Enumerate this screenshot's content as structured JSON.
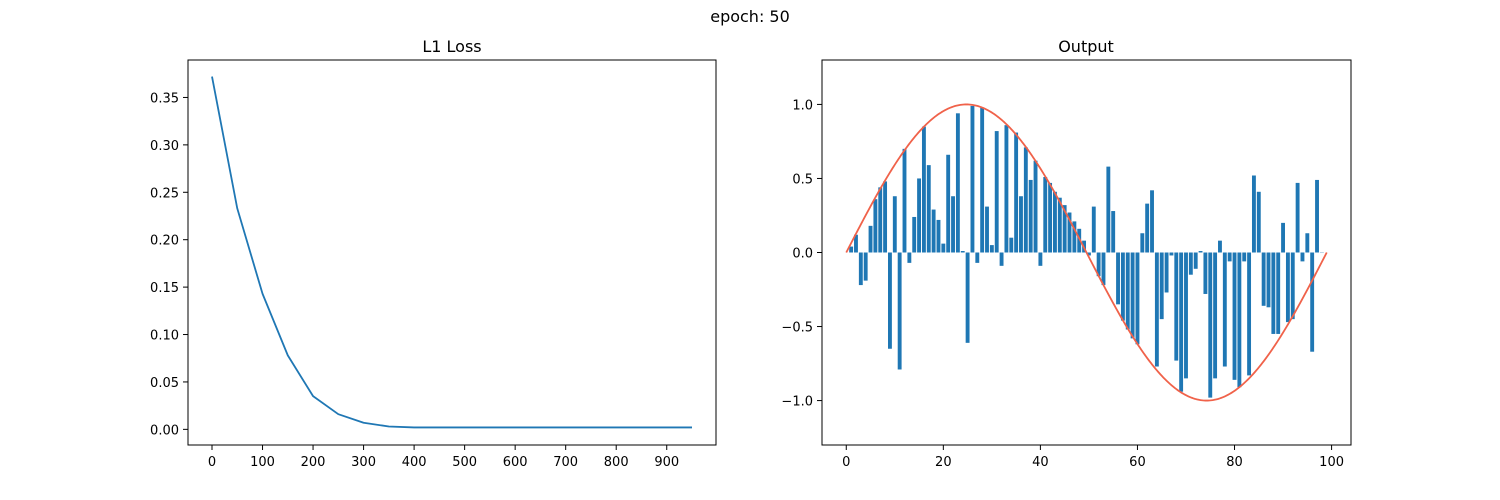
{
  "figure": {
    "suptitle": "epoch: 50"
  },
  "colors": {
    "line": "#1f77b4",
    "bar": "#1f77b4",
    "curve": "#f0624a",
    "axes": "#000000"
  },
  "chart_data": [
    {
      "type": "line",
      "title": "L1 Loss",
      "xlabel": "",
      "ylabel": "",
      "xlim": [
        -47.5,
        997.5
      ],
      "ylim": [
        -0.0165,
        0.3895
      ],
      "xticks": [
        0,
        100,
        200,
        300,
        400,
        500,
        600,
        700,
        800,
        900
      ],
      "yticks": [
        0.0,
        0.05,
        0.1,
        0.15,
        0.2,
        0.25,
        0.3,
        0.35
      ],
      "ytick_labels": [
        "0.00",
        "0.05",
        "0.10",
        "0.15",
        "0.20",
        "0.25",
        "0.30",
        "0.35"
      ],
      "grid": false,
      "series": [
        {
          "x": [
            0,
            50,
            100,
            150,
            200,
            250,
            300,
            350,
            400,
            450,
            500,
            550,
            600,
            650,
            700,
            750,
            800,
            850,
            900,
            950
          ],
          "y": [
            0.372,
            0.233,
            0.143,
            0.078,
            0.035,
            0.016,
            0.007,
            0.003,
            0.002,
            0.002,
            0.002,
            0.002,
            0.002,
            0.002,
            0.002,
            0.002,
            0.002,
            0.002,
            0.002,
            0.002
          ]
        }
      ]
    },
    {
      "type": "bar",
      "title": "Output",
      "xlabel": "",
      "ylabel": "",
      "xlim": [
        -5,
        104
      ],
      "ylim": [
        -1.3,
        1.3
      ],
      "xticks": [
        0,
        20,
        40,
        60,
        80,
        100
      ],
      "yticks": [
        -1.0,
        -0.5,
        0.0,
        0.5,
        1.0
      ],
      "ytick_labels": [
        "−1.0",
        "−0.5",
        "0.0",
        "0.5",
        "1.0"
      ],
      "grid": false,
      "bars": {
        "x_start": 1,
        "values": [
          0.04,
          0.12,
          -0.22,
          -0.19,
          0.18,
          0.36,
          0.44,
          0.48,
          -0.65,
          0.38,
          -0.79,
          0.7,
          -0.07,
          0.24,
          0.5,
          0.85,
          0.59,
          0.29,
          0.22,
          0.06,
          0.66,
          0.38,
          0.94,
          0.01,
          -0.61,
          0.99,
          -0.07,
          0.98,
          0.31,
          0.05,
          0.82,
          -0.09,
          0.86,
          0.1,
          0.81,
          0.38,
          0.71,
          0.49,
          0.62,
          -0.09,
          0.51,
          0.47,
          0.41,
          0.37,
          0.32,
          0.27,
          0.21,
          0.16,
          0.08,
          -0.02,
          0.31,
          -0.16,
          -0.22,
          0.58,
          0.28,
          -0.35,
          -0.46,
          -0.52,
          -0.58,
          -0.62,
          0.13,
          0.33,
          0.42,
          -0.77,
          -0.45,
          -0.27,
          -0.02,
          -0.73,
          -0.94,
          -0.85,
          -0.15,
          -0.11,
          0.01,
          -0.28,
          -0.98,
          -0.85,
          0.08,
          -0.77,
          -0.06,
          -0.86,
          -0.91,
          -0.06,
          -0.83,
          0.52,
          0.41,
          -0.36,
          -0.37,
          -0.55,
          -0.55,
          0.2,
          -0.47,
          -0.45,
          0.47,
          -0.06,
          0.13,
          -0.67,
          0.49,
          0.0
        ]
      },
      "curve": {
        "function": "sin",
        "x_range": [
          0,
          99
        ],
        "period_points": 99,
        "amplitude": 1.0
      }
    }
  ]
}
